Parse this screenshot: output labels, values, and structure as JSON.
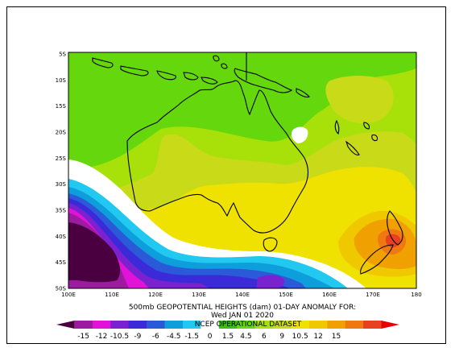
{
  "title_line1": "500mb GEOPOTENTIAL HEIGHTS (dam)   01-DAY ANOMALY FOR:",
  "title_line2": "Wed JAN 01 2020",
  "dataset_label": "NCEP OPERATIONAL DATASET",
  "lat_labels": [
    "5S",
    "10S",
    "15S",
    "20S",
    "25S",
    "30S",
    "35S",
    "40S",
    "45S",
    "50S"
  ],
  "lon_labels": [
    "100E",
    "110E",
    "120E",
    "130E",
    "140E",
    "150E",
    "160E",
    "170E",
    "180"
  ],
  "colorbar": {
    "ticks": [
      "-15",
      "-12",
      "-10.5",
      "-9",
      "-6",
      "-4.5",
      "-1.5",
      "0",
      "1.5",
      "4.5",
      "6",
      "9",
      "10.5",
      "12",
      "15"
    ],
    "colors": [
      "#4a0040",
      "#9c1ba0",
      "#e212d8",
      "#7a22d0",
      "#3a2ad8",
      "#2a5ad8",
      "#0e9edc",
      "#21c8f0",
      "#ffffff",
      "#38c00e",
      "#64d80c",
      "#a8e00a",
      "#c8da18",
      "#f0e200",
      "#f0c800",
      "#f0a000",
      "#f07810",
      "#e84020",
      "#e80000"
    ]
  },
  "map_colors": {
    "deep_low": "#4a0040",
    "purple": "#9c1ba0",
    "magenta": "#e212d8",
    "violet": "#7a22d0",
    "blue": "#3a2ad8",
    "mid_blue": "#2a5ad8",
    "cyan_dark": "#0e9edc",
    "cyan": "#21c8f0",
    "white": "#ffffff",
    "green": "#64d80c",
    "light_green": "#a8e00a",
    "yellow_green": "#c8da18",
    "yellow": "#f0e200",
    "gold": "#f0c800",
    "orange": "#f0a000",
    "dark_orange": "#f07810",
    "red_orange": "#e84020"
  }
}
